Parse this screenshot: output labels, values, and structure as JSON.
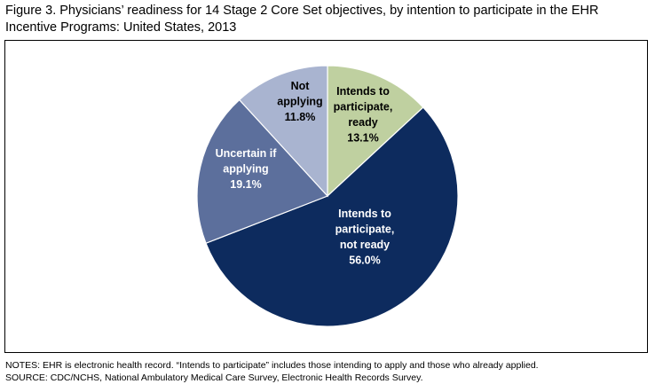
{
  "title": "Figure 3. Physicians’ readiness for 14 Stage 2 Core Set objectives, by intention to participate in the EHR Incentive Programs: United States, 2013",
  "notes": "NOTES: EHR is electronic health record. “Intends to participate” includes those intending to apply and those who already applied.",
  "source": "SOURCE: CDC/NCHS, National Ambulatory Medical Care Survey, Electronic Health Records Survey.",
  "chart_data": {
    "type": "pie",
    "title": "",
    "slices": [
      {
        "label": "Intends to participate, ready",
        "label_lines": [
          "Intends to",
          "participate,",
          "ready"
        ],
        "value": 13.1,
        "value_label": "13.1%",
        "color": "#bfd0a0",
        "label_color": "#000000"
      },
      {
        "label": "Intends to participate, not ready",
        "label_lines": [
          "Intends to",
          "participate,",
          "not ready"
        ],
        "value": 56.0,
        "value_label": "56.0%",
        "color": "#0d2b5e",
        "label_color": "#ffffff"
      },
      {
        "label": "Uncertain if applying",
        "label_lines": [
          "Uncertain if",
          "applying"
        ],
        "value": 19.1,
        "value_label": "19.1%",
        "color": "#5c6f9c",
        "label_color": "#ffffff"
      },
      {
        "label": "Not applying",
        "label_lines": [
          "Not",
          "applying"
        ],
        "value": 11.8,
        "value_label": "11.8%",
        "color": "#a9b4d0",
        "label_color": "#000000"
      }
    ]
  }
}
